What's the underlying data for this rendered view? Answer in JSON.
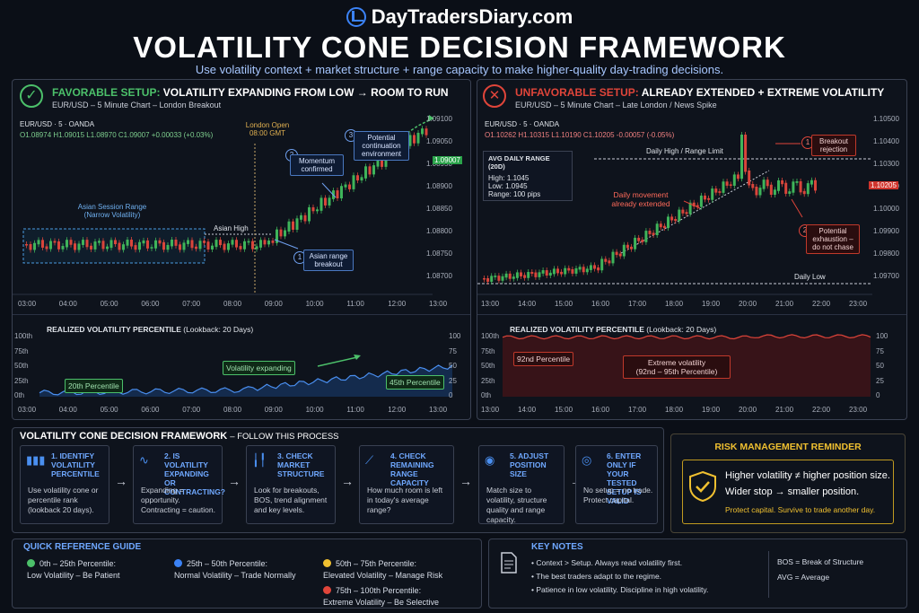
{
  "brand": "DayTradersDiary.com",
  "title": "VOLATILITY CONE DECISION FRAMEWORK",
  "subtitle": "Use volatility context + market structure + range capacity to make higher-quality day-trading decisions.",
  "left_panel": {
    "label_a": "FAVORABLE SETUP:",
    "label_b": "VOLATILITY EXPANDING FROM LOW → ROOM TO RUN",
    "sub": "EUR/USD – 5 Minute Chart – London Breakout",
    "symbol": "EUR/USD · 5 · OANDA",
    "ohlc": "O1.08974 H1.09015 L1.08970 C1.09007 +0.00033 (+0.03%)",
    "last_price": "1.09007",
    "y_ticks": [
      "1.09100",
      "1.09050",
      "1.08950",
      "1.08900",
      "1.08850",
      "1.08800",
      "1.08750",
      "1.08700"
    ],
    "x_ticks": [
      "03:00",
      "04:00",
      "05:00",
      "06:00",
      "07:00",
      "08:00",
      "09:00",
      "10:00",
      "11:00",
      "12:00",
      "13:00"
    ],
    "asian_range": "Asian Session Range\n(Narrow Volatility)",
    "asian_high": "Asian High",
    "london_open": "London Open\n08:00 GMT",
    "c1_num": "1",
    "c1": "Asian range breakout",
    "c2_num": "2",
    "c2": "Momentum confirmed",
    "c3_num": "3",
    "c3": "Potential continuation environment",
    "vol_title": "REALIZED VOLATILITY PERCENTILE",
    "vol_lookback": "(Lookback: 20 Days)",
    "vol_y": [
      "100th",
      "75th",
      "50th",
      "25th",
      "0th"
    ],
    "vol_yr": [
      "100",
      "75",
      "50",
      "25",
      "0"
    ],
    "vol_x": [
      "03:00",
      "04:00",
      "05:00",
      "06:00",
      "07:00",
      "08:00",
      "09:00",
      "10:00",
      "11:00",
      "12:00",
      "13:00"
    ],
    "vol_a": "20th Percentile",
    "vol_b": "Volatility expanding",
    "vol_c": "45th Percentile"
  },
  "right_panel": {
    "label_a": "UNFAVORABLE SETUP:",
    "label_b": "ALREADY EXTENDED + EXTREME VOLATILITY",
    "sub": "EUR/USD – 5 Minute Chart – Late London / News Spike",
    "symbol": "EUR/USD · 5 · OANDA",
    "ohlc": "O1.10262 H1.10315 L1.10190 C1.10205 -0.00057 (-0.05%)",
    "last_price": "1.10205",
    "y_ticks": [
      "1.10500",
      "1.10400",
      "1.10300",
      "1.10100",
      "1.10000",
      "1.09900",
      "1.09800",
      "1.09700"
    ],
    "x_ticks": [
      "13:00",
      "14:00",
      "15:00",
      "16:00",
      "17:00",
      "18:00",
      "19:00",
      "20:00",
      "21:00",
      "22:00",
      "23:00"
    ],
    "adr_title": "AVG DAILY RANGE (20D)",
    "adr_high": "High:  1.1045",
    "adr_low": "Low:   1.0945",
    "adr_range": "Range:  100 pips",
    "daily_high": "Daily High / Range Limit",
    "daily_low": "Daily Low",
    "extended": "Daily movement\nalready extended",
    "c1_num": "1",
    "c1": "Breakout rejection",
    "c2_num": "2",
    "c2": "Potential exhaustion – do not chase",
    "vol_title": "REALIZED VOLATILITY PERCENTILE",
    "vol_lookback": "(Lookback: 20 Days)",
    "vol_y": [
      "100th",
      "75th",
      "50th",
      "25th",
      "0th"
    ],
    "vol_yr": [
      "100",
      "75",
      "50",
      "25",
      "0"
    ],
    "vol_x": [
      "13:00",
      "14:00",
      "15:00",
      "16:00",
      "17:00",
      "18:00",
      "19:00",
      "20:00",
      "21:00",
      "22:00",
      "23:00"
    ],
    "vol_a": "92nd Percentile",
    "vol_b": "Extreme volatility\n(92nd – 95th Percentile)"
  },
  "process": {
    "title": "VOLATILITY CONE DECISION FRAMEWORK",
    "title_suffix": "– FOLLOW THIS PROCESS",
    "steps": [
      {
        "t": "1. IDENTIFY VOLATILITY PERCENTILE",
        "d": "Use volatility cone or percentile rank (lookback 20 days).",
        "icon": "bar-chart-icon"
      },
      {
        "t": "2. IS VOLATILITY EXPANDING OR CONTRACTING?",
        "d": "Expanding = opportunity. Contracting = caution.",
        "icon": "pulse-icon"
      },
      {
        "t": "3. CHECK MARKET STRUCTURE",
        "d": "Look for breakouts, BOS, trend alignment and key levels.",
        "icon": "candlestick-icon"
      },
      {
        "t": "4. CHECK REMAINING RANGE CAPACITY",
        "d": "How much room is left in today's average range?",
        "icon": "ruler-icon"
      },
      {
        "t": "5. ADJUST POSITION SIZE",
        "d": "Match size to volatility, structure quality and range capacity.",
        "icon": "person-icon"
      },
      {
        "t": "6. ENTER ONLY IF YOUR TESTED SETUP IS VALID",
        "d": "No setup = no trade. Protect capital.",
        "icon": "target-icon"
      }
    ]
  },
  "risk": {
    "title": "RISK MANAGEMENT REMINDER",
    "line1": "Higher volatility ≠ higher position size.",
    "line2": "Wider stop → smaller position.",
    "line3": "Protect capital. Survive to trade another day."
  },
  "quick": {
    "title": "QUICK REFERENCE GUIDE",
    "items": [
      {
        "a": "0th – 25th Percentile:",
        "b": "Low Volatility – Be Patient",
        "color": "#4cc06a"
      },
      {
        "a": "25th – 50th Percentile:",
        "b": "Normal Volatility – Trade Normally",
        "color": "#3b82f6"
      },
      {
        "a": "50th – 75th Percentile:",
        "b": "Elevated Volatility – Manage Risk",
        "color": "#f0c030"
      },
      {
        "a": "75th – 100th Percentile:",
        "b": "Extreme Volatility – Be Selective",
        "color": "#e0453a"
      }
    ]
  },
  "notes": {
    "title": "KEY NOTES",
    "items": [
      "Context > Setup. Always read volatility first.",
      "The best traders adapt to the regime.",
      "Patience in low volatility. Discipline in high volatility."
    ],
    "abbr1": "BOS = Break of Structure",
    "abbr2": "AVG = Average"
  }
}
